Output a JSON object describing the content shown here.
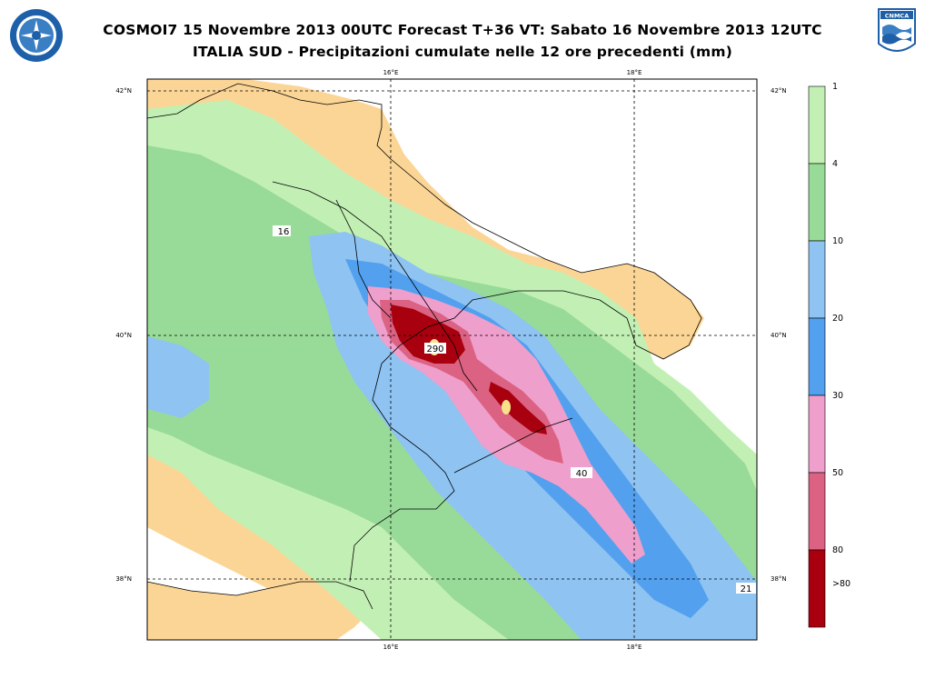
{
  "title": {
    "line1": "COSMOI7 15 Novembre 2013 00UTC Forecast T+36 VT: Sabato 16 Novembre 2013 12UTC",
    "line2": "ITALIA SUD - Precipitazioni cumulate nelle 12 ore precedenti (mm)"
  },
  "logos": {
    "right_text": "CNMCA"
  },
  "axes": {
    "lon_top": [
      "16°E",
      "18°E"
    ],
    "lon_bottom": [
      "16°E",
      "18°E"
    ],
    "lat_left": [
      "42°N",
      "40°N",
      "38°N"
    ],
    "lat_right": [
      "42°N",
      "40°N",
      "38°N"
    ]
  },
  "contour_labels": [
    "16",
    "290",
    "40",
    "21"
  ],
  "colorbar": {
    "labels": [
      "1",
      "4",
      "10",
      "20",
      "30",
      "50",
      "80",
      ">80"
    ],
    "colors": [
      "#c2f0b4",
      "#98db98",
      "#8ec3f2",
      "#52a0ee",
      "#ef9fcc",
      "#dc6283",
      "#a8000e"
    ]
  },
  "map_colors": {
    "land": "#fbd595",
    "sea": "#ffffff"
  }
}
